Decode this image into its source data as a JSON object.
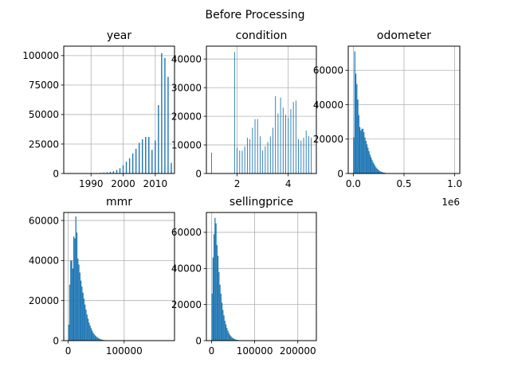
{
  "suptitle": "Before Processing",
  "colors": {
    "bar": "#1f77b4",
    "grid": "#b0b0b0",
    "frame": "#000000"
  },
  "chart_data": [
    {
      "type": "bar",
      "title": "year",
      "xlabel": "",
      "ylabel": "",
      "grid": true,
      "xlim": [
        1981.5,
        2016
      ],
      "ylim": [
        0,
        108000
      ],
      "xticks": [
        1990,
        2000,
        2010
      ],
      "yticks": [
        0,
        25000,
        50000,
        75000,
        100000
      ],
      "offset_label": "",
      "bar_width": 0.35,
      "x": [
        1984,
        1985,
        1986,
        1987,
        1988,
        1989,
        1990,
        1991,
        1992,
        1993,
        1994,
        1995,
        1996,
        1997,
        1998,
        1999,
        2000,
        2001,
        2002,
        2003,
        2004,
        2005,
        2006,
        2007,
        2008,
        2009,
        2010,
        2011,
        2012,
        2013,
        2014,
        2015
      ],
      "values": [
        20,
        30,
        40,
        60,
        80,
        120,
        180,
        250,
        350,
        500,
        700,
        1000,
        1500,
        2000,
        3000,
        4500,
        7000,
        10000,
        13000,
        17000,
        21000,
        26000,
        29000,
        31000,
        31000,
        20000,
        28000,
        58000,
        102000,
        98000,
        82000,
        9000
      ]
    },
    {
      "type": "bar",
      "title": "condition",
      "xlabel": "",
      "ylabel": "",
      "grid": true,
      "xlim": [
        0.8,
        5.1
      ],
      "ylim": [
        0,
        44500
      ],
      "xticks": [
        2,
        4
      ],
      "yticks": [
        0,
        10000,
        20000,
        30000,
        40000
      ],
      "offset_label": "",
      "bar_width": 0.025,
      "x": [
        1.0,
        1.9,
        2.0,
        2.1,
        2.2,
        2.3,
        2.4,
        2.5,
        2.6,
        2.7,
        2.8,
        2.9,
        3.0,
        3.1,
        3.2,
        3.3,
        3.4,
        3.5,
        3.6,
        3.7,
        3.8,
        3.9,
        4.0,
        4.1,
        4.2,
        4.3,
        4.4,
        4.5,
        4.6,
        4.7,
        4.8,
        4.9
      ],
      "values": [
        7300,
        42500,
        9000,
        8000,
        8000,
        9500,
        12500,
        12000,
        16000,
        19000,
        19000,
        13000,
        8000,
        9500,
        11000,
        13000,
        16000,
        27000,
        21000,
        26500,
        23000,
        20500,
        19500,
        22500,
        25000,
        25500,
        12000,
        11500,
        12500,
        15000,
        13000,
        12500
      ]
    },
    {
      "type": "bar",
      "title": "odometer",
      "xlabel": "",
      "ylabel": "",
      "grid": true,
      "xlim": [
        -0.05,
        1.05
      ],
      "ylim": [
        0,
        74000
      ],
      "xticks": [
        0.0,
        0.5,
        1.0
      ],
      "yticks": [
        0,
        20000,
        40000,
        60000
      ],
      "offset_label": "1e6",
      "bar_width": 0.01,
      "x": [
        0.005,
        0.015,
        0.025,
        0.035,
        0.045,
        0.055,
        0.065,
        0.075,
        0.085,
        0.095,
        0.105,
        0.115,
        0.125,
        0.135,
        0.145,
        0.155,
        0.165,
        0.175,
        0.185,
        0.195,
        0.205,
        0.215,
        0.225,
        0.235,
        0.245,
        0.255,
        0.265,
        0.275,
        0.285,
        0.295,
        0.305,
        0.315,
        0.325,
        0.335,
        0.345,
        0.355
      ],
      "values": [
        21000,
        71000,
        58000,
        52000,
        43000,
        34000,
        27000,
        25000,
        26000,
        26000,
        24000,
        21000,
        19000,
        17000,
        15000,
        13000,
        11000,
        9500,
        8000,
        6500,
        5500,
        4500,
        3500,
        2800,
        2200,
        1700,
        1300,
        1000,
        800,
        600,
        450,
        350,
        250,
        200,
        150,
        100
      ]
    },
    {
      "type": "bar",
      "title": "mmr",
      "xlabel": "",
      "ylabel": "",
      "grid": true,
      "xlim": [
        -8000,
        190000
      ],
      "ylim": [
        0,
        64000
      ],
      "xticks": [
        0,
        100000
      ],
      "yticks": [
        0,
        20000,
        40000,
        60000
      ],
      "offset_label": "",
      "bar_width": 1820,
      "x": [
        910,
        2730,
        4550,
        6370,
        8190,
        10010,
        11830,
        13650,
        15470,
        17290,
        19110,
        20930,
        22750,
        24570,
        26390,
        28210,
        30030,
        31850,
        33670,
        35490,
        37310,
        39130,
        40950,
        42770,
        44590,
        46410,
        48230,
        50050,
        51870,
        53690,
        55510,
        57330,
        59150,
        60970,
        62790,
        64610,
        66430,
        68250,
        70070,
        71890
      ],
      "values": [
        8000,
        28000,
        40000,
        40000,
        36000,
        52000,
        51000,
        62000,
        54000,
        41000,
        38000,
        34000,
        30000,
        27000,
        24000,
        21000,
        18000,
        15500,
        13000,
        11000,
        9000,
        7500,
        6200,
        5000,
        4000,
        3200,
        2600,
        2100,
        1700,
        1300,
        1000,
        800,
        600,
        450,
        350,
        260,
        200,
        150,
        100,
        80
      ]
    },
    {
      "type": "bar",
      "title": "sellingprice",
      "xlabel": "",
      "ylabel": "",
      "grid": true,
      "xlim": [
        -12000,
        243000
      ],
      "ylim": [
        0,
        71000
      ],
      "xticks": [
        0,
        100000,
        200000
      ],
      "yticks": [
        0,
        20000,
        40000,
        60000
      ],
      "offset_label": "",
      "bar_width": 2300,
      "x": [
        1150,
        3450,
        5750,
        8050,
        10350,
        12650,
        14950,
        17250,
        19550,
        21850,
        24150,
        26450,
        28750,
        31050,
        33350,
        35650,
        37950,
        40250,
        42550,
        44850,
        47150,
        49450,
        51750,
        54050,
        56350,
        58650,
        60950,
        63250,
        65550,
        67850,
        70150
      ],
      "values": [
        26000,
        46000,
        59000,
        68000,
        65000,
        53000,
        47000,
        38000,
        31000,
        26000,
        21000,
        17000,
        14000,
        11000,
        9000,
        7000,
        5500,
        4200,
        3200,
        2500,
        1900,
        1400,
        1100,
        800,
        600,
        450,
        350,
        250,
        180,
        130,
        90
      ]
    }
  ]
}
